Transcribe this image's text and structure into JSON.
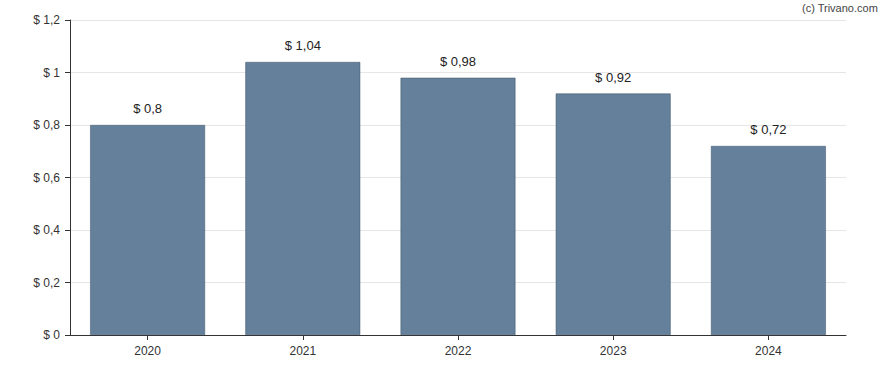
{
  "chart_data": {
    "type": "bar",
    "annotations": [
      "(c) Trivano.com"
    ],
    "categories": [
      "2020",
      "2021",
      "2022",
      "2023",
      "2024"
    ],
    "values": [
      0.8,
      1.04,
      0.98,
      0.92,
      0.72
    ],
    "value_labels": [
      "$ 0,8",
      "$ 1,04",
      "$ 0,98",
      "$ 0,92",
      "$ 0,72"
    ],
    "data_labels": true,
    "color": "#64809a",
    "ylim": [
      0,
      1.2
    ],
    "yticks": [
      {
        "value": 0,
        "label": "$ 0"
      },
      {
        "value": 0.2,
        "label": "$ 0,2"
      },
      {
        "value": 0.4,
        "label": "$ 0,4"
      },
      {
        "value": 0.6,
        "label": "$ 0,6"
      },
      {
        "value": 0.8,
        "label": "$ 0,8"
      },
      {
        "value": 1,
        "label": "$ 1"
      },
      {
        "value": 1.2,
        "label": "$ 1,2"
      }
    ],
    "grid": true
  }
}
